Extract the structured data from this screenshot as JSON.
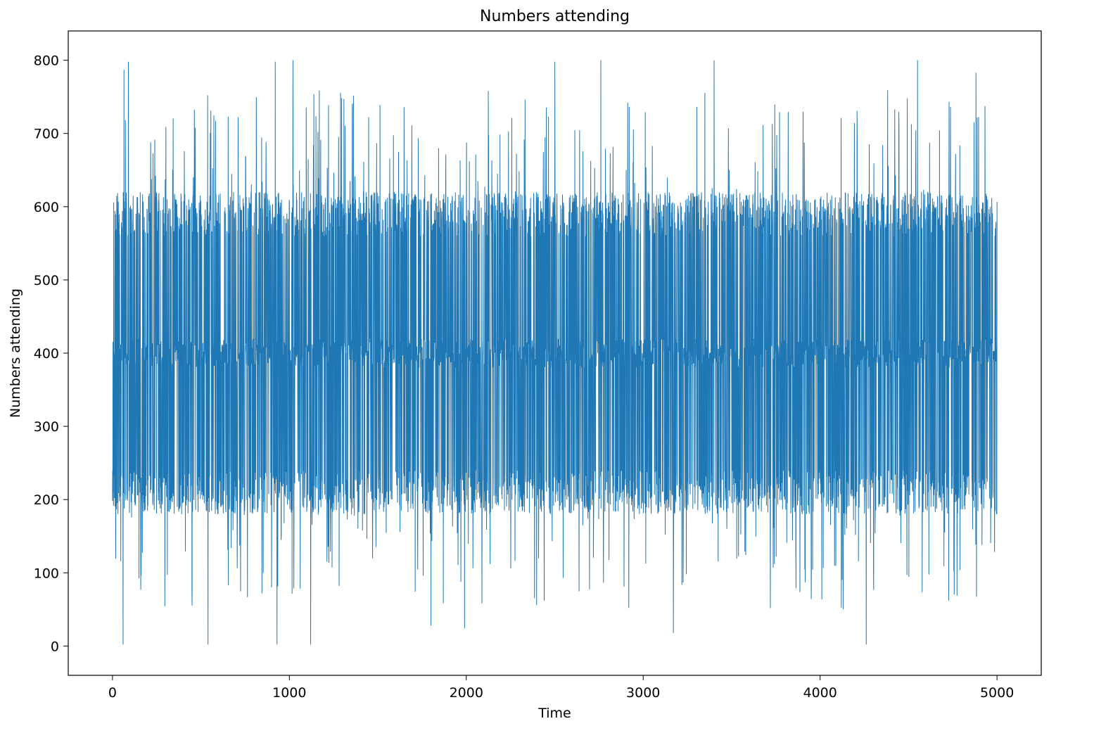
{
  "chart_data": {
    "type": "line",
    "title": "Numbers attending",
    "xlabel": "Time",
    "ylabel": "Numbers attending",
    "xlim": [
      -250,
      5250
    ],
    "ylim": [
      -40,
      840
    ],
    "grid": false,
    "legend": "none",
    "x_ticks": [
      0,
      1000,
      2000,
      3000,
      4000,
      5000
    ],
    "y_ticks": [
      0,
      100,
      200,
      300,
      400,
      500,
      600,
      700,
      800
    ],
    "x_tick_labels": [
      "0",
      "1000",
      "2000",
      "3000",
      "4000",
      "5000"
    ],
    "y_tick_labels": [
      "0",
      "100",
      "200",
      "300",
      "400",
      "500",
      "600",
      "700",
      "800"
    ],
    "series": [
      {
        "color": "#1f77b4",
        "x_start": 0,
        "x_end": 5000,
        "n_points": 5000,
        "value_range": [
          0,
          800
        ],
        "typical_band": [
          180,
          620
        ],
        "central_value": 400,
        "spikes": [
          {
            "x": 65,
            "y": 787
          },
          {
            "x": 90,
            "y": 798
          },
          {
            "x": 60,
            "y": 2
          },
          {
            "x": 540,
            "y": 800
          },
          {
            "x": 540,
            "y": 2
          },
          {
            "x": 920,
            "y": 798
          },
          {
            "x": 930,
            "y": 2
          },
          {
            "x": 1020,
            "y": 800
          },
          {
            "x": 1120,
            "y": 800
          },
          {
            "x": 1120,
            "y": 2
          },
          {
            "x": 2500,
            "y": 798
          },
          {
            "x": 2760,
            "y": 800
          },
          {
            "x": 3170,
            "y": 18
          },
          {
            "x": 3400,
            "y": 800
          },
          {
            "x": 4260,
            "y": 2
          },
          {
            "x": 4550,
            "y": 800
          },
          {
            "x": 4880,
            "y": 783
          },
          {
            "x": 1800,
            "y": 28
          },
          {
            "x": 1990,
            "y": 24
          },
          {
            "x": 2440,
            "y": 62
          }
        ]
      }
    ]
  }
}
